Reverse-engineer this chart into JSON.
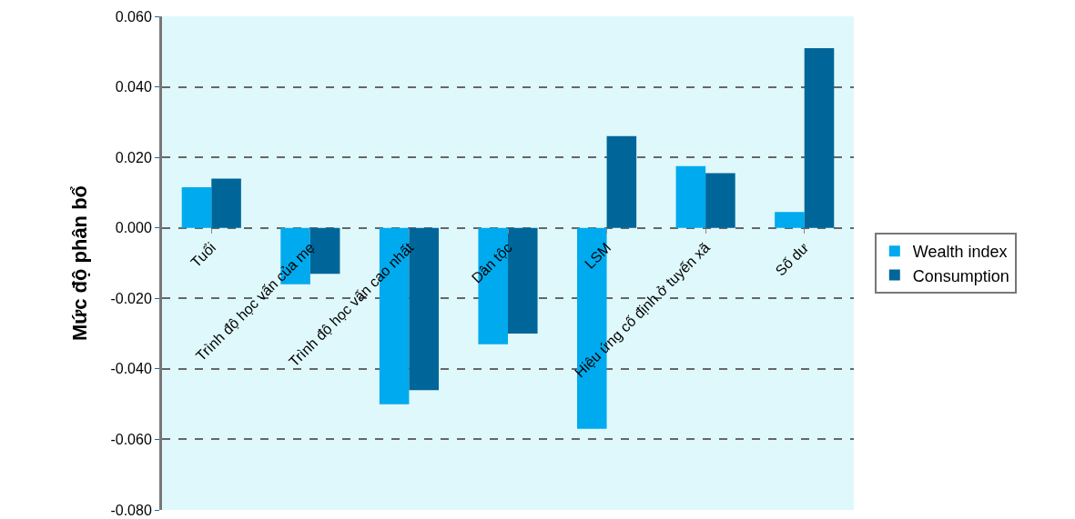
{
  "chart_data": {
    "type": "bar",
    "ylabel": "Mức độ phân bổ",
    "categories": [
      "Tuổi",
      "Trình độ học vấn của mẹ",
      "Trình độ học vấn cao nhất",
      "Dân tộc",
      "LSM",
      "Hiệu ứng cố định ở tuyến xã",
      "Số dư"
    ],
    "series": [
      {
        "name": "Wealth index",
        "color": "#00aaee",
        "values": [
          0.0115,
          -0.016,
          -0.05,
          -0.033,
          -0.057,
          0.0175,
          0.0045
        ]
      },
      {
        "name": "Consumption",
        "color": "#006699",
        "values": [
          0.014,
          -0.013,
          -0.046,
          -0.03,
          0.026,
          0.0155,
          0.051
        ]
      }
    ],
    "ylim": [
      -0.08,
      0.06
    ],
    "yticks": [
      {
        "value": -0.08,
        "label": "-0.080"
      },
      {
        "value": -0.06,
        "label": "-0.060"
      },
      {
        "value": -0.04,
        "label": "-0.040"
      },
      {
        "value": -0.02,
        "label": "-0.020"
      },
      {
        "value": 0,
        "label": "0.000"
      },
      {
        "value": 0.02,
        "label": "0.020"
      },
      {
        "value": 0.04,
        "label": "0.040"
      },
      {
        "value": 0.06,
        "label": "0.060"
      }
    ],
    "grid": "y",
    "legend": "right"
  }
}
